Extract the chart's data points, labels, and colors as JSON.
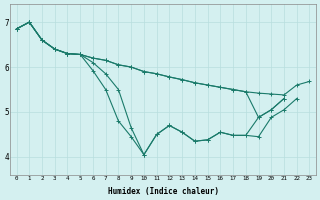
{
  "xlabel": "Humidex (Indice chaleur)",
  "bg_color": "#d4f0f0",
  "line_color": "#1a7a6a",
  "grid_color": "#b8dede",
  "ylim": [
    3.6,
    7.4
  ],
  "xlim": [
    -0.5,
    23.5
  ],
  "line1_x": [
    0,
    1,
    2,
    3,
    4,
    5,
    6,
    7,
    8,
    9,
    10,
    11,
    12,
    13,
    14,
    15,
    16,
    17,
    18,
    19,
    20,
    21,
    22,
    23
  ],
  "line1_y": [
    6.85,
    7.0,
    6.6,
    6.4,
    6.3,
    6.28,
    6.2,
    6.15,
    6.05,
    6.0,
    5.9,
    5.85,
    5.78,
    5.72,
    5.65,
    5.6,
    5.55,
    5.5,
    5.45,
    5.42,
    5.4,
    5.38,
    5.6,
    5.68
  ],
  "line2_x": [
    0,
    1,
    2,
    3,
    4,
    5,
    6,
    7,
    8,
    9,
    10,
    11,
    12,
    13,
    14,
    15,
    16,
    17,
    18,
    19,
    20,
    21,
    22
  ],
  "line2_y": [
    6.85,
    7.0,
    6.6,
    6.4,
    6.3,
    6.28,
    6.1,
    5.85,
    5.5,
    4.65,
    4.05,
    4.5,
    4.7,
    4.55,
    4.35,
    4.38,
    4.55,
    4.48,
    4.48,
    4.45,
    4.88,
    5.05,
    5.3
  ],
  "line3_x": [
    0,
    1,
    2,
    3,
    4,
    5,
    6,
    7,
    8,
    9,
    10,
    11,
    12,
    13,
    14,
    15,
    16,
    17,
    18,
    19,
    20,
    21
  ],
  "line3_y": [
    6.85,
    7.0,
    6.6,
    6.4,
    6.3,
    6.28,
    5.92,
    5.5,
    4.8,
    4.45,
    4.05,
    4.5,
    4.7,
    4.55,
    4.35,
    4.38,
    4.55,
    4.48,
    4.48,
    4.88,
    5.05,
    5.3
  ],
  "line4_x": [
    0,
    1,
    2,
    3,
    4,
    5,
    6,
    7,
    8,
    9,
    10,
    11,
    12,
    13,
    14,
    15,
    16,
    17,
    18,
    19,
    20,
    21,
    22,
    23
  ],
  "line4_y": [
    6.85,
    7.0,
    6.6,
    6.4,
    6.3,
    6.28,
    6.2,
    6.15,
    6.05,
    6.0,
    5.9,
    5.85,
    5.78,
    5.72,
    5.65,
    5.6,
    5.55,
    5.5,
    5.45,
    4.88,
    5.05,
    5.3,
    null,
    null
  ],
  "yticks": [
    4,
    5,
    6,
    7
  ],
  "xticks": [
    0,
    1,
    2,
    3,
    4,
    5,
    6,
    7,
    8,
    9,
    10,
    11,
    12,
    13,
    14,
    15,
    16,
    17,
    18,
    19,
    20,
    21,
    22,
    23
  ],
  "xtick_labels": [
    "0",
    "1",
    "2",
    "3",
    "4",
    "5",
    "6",
    "7",
    "8",
    "9",
    "10",
    "11",
    "12",
    "13",
    "14",
    "15",
    "16",
    "17",
    "18",
    "19",
    "20",
    "21",
    "22",
    "23"
  ]
}
